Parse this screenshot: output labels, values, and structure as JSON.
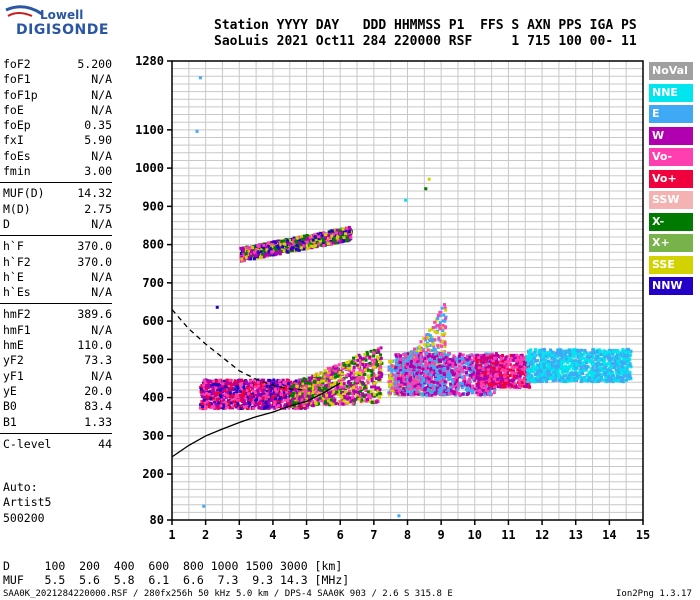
{
  "logo": {
    "line1": "Lowell",
    "line2": "DIGISONDE"
  },
  "header": {
    "line1": "Station YYYY DAY   DDD HHMMSS P1  FFS S AXN PPS IGA PS",
    "line2": "SaoLuis 2021 Oct11 284 220000 RSF     1 715 100 00- 11"
  },
  "params_groups": [
    [
      {
        "label": "foF2",
        "value": "5.200"
      },
      {
        "label": "foF1",
        "value": "N/A"
      },
      {
        "label": "foF1p",
        "value": "N/A"
      },
      {
        "label": "foE",
        "value": "N/A"
      },
      {
        "label": "foEp",
        "value": "0.35"
      },
      {
        "label": "fxI",
        "value": "5.90"
      },
      {
        "label": "foEs",
        "value": "N/A"
      },
      {
        "label": "fmin",
        "value": "3.00"
      }
    ],
    [
      {
        "label": "MUF(D)",
        "value": "14.32"
      },
      {
        "label": "M(D)",
        "value": "2.75"
      },
      {
        "label": "D",
        "value": "N/A"
      }
    ],
    [
      {
        "label": "h`F",
        "value": "370.0"
      },
      {
        "label": "h`F2",
        "value": "370.0"
      },
      {
        "label": "h`E",
        "value": "N/A"
      },
      {
        "label": "h`Es",
        "value": "N/A"
      }
    ],
    [
      {
        "label": "hmF2",
        "value": "389.6"
      },
      {
        "label": "hmF1",
        "value": "N/A"
      },
      {
        "label": "hmE",
        "value": "110.0"
      },
      {
        "label": "yF2",
        "value": "73.3"
      },
      {
        "label": "yF1",
        "value": "N/A"
      },
      {
        "label": "yE",
        "value": "20.0"
      },
      {
        "label": "B0",
        "value": "83.4"
      },
      {
        "label": "B1",
        "value": "1.33"
      }
    ],
    [
      {
        "label": "C-level",
        "value": "44"
      }
    ]
  ],
  "auto": {
    "line1": "Auto:",
    "line2": "Artist5",
    "line3": "500200"
  },
  "legend": [
    {
      "name": "NoVal",
      "color": "#a0a0a0"
    },
    {
      "name": "NNE",
      "color": "#00e5ee"
    },
    {
      "name": "E",
      "color": "#3fa9f5"
    },
    {
      "name": "W",
      "color": "#b000b0"
    },
    {
      "name": "Vo-",
      "color": "#ff3fb0"
    },
    {
      "name": "Vo+",
      "color": "#f0003c"
    },
    {
      "name": "SSW",
      "color": "#f4b2b2"
    },
    {
      "name": "X-",
      "color": "#007a00"
    },
    {
      "name": "X+",
      "color": "#78b24a"
    },
    {
      "name": "SSE",
      "color": "#d2d200"
    },
    {
      "name": "NNW",
      "color": "#2200c8"
    }
  ],
  "muf_table": {
    "line1": "D     100  200  400  600  800 1000 1500 3000 [km]",
    "line2": "MUF   5.5  5.6  5.8  6.1  6.6  7.3  9.3 14.3 [MHz]"
  },
  "footer": "SAA0K_2021284220000.RSF / 280fx256h 50 kHz 5.0 km / DPS-4 SAA0K 903 / 2.6 S 315.8 E",
  "version": "Ion2Png 1.3.17",
  "chart_data": {
    "type": "scatter",
    "xlabel": "",
    "ylabel": "",
    "xlim": [
      1,
      15
    ],
    "ylim": [
      80,
      1280
    ],
    "x_ticks": [
      1,
      2,
      3,
      4,
      5,
      6,
      7,
      8,
      9,
      10,
      11,
      12,
      13,
      14,
      15
    ],
    "y_ticks": [
      80,
      200,
      300,
      400,
      500,
      600,
      700,
      800,
      900,
      1000,
      1100,
      1280
    ],
    "grid": true,
    "legend_position": "right",
    "curves": [
      {
        "name": "",
        "style": "dashed",
        "x": [
          1.0,
          1.5,
          2.0,
          2.5,
          3.0,
          3.5,
          4.0,
          4.5,
          5.0
        ],
        "y": [
          630,
          580,
          540,
          505,
          470,
          448,
          432,
          422,
          420
        ]
      },
      {
        "name": "",
        "style": "solid",
        "x": [
          1.0,
          1.5,
          2.0,
          2.5,
          3.0,
          3.5,
          4.0,
          4.5,
          5.0,
          5.5,
          6.0
        ],
        "y": [
          245,
          275,
          300,
          318,
          335,
          350,
          362,
          378,
          390,
          412,
          438
        ]
      }
    ],
    "trace_regions": [
      {
        "x_range": [
          1.8,
          5.0
        ],
        "y_range": [
          375,
          450
        ],
        "colors": [
          "#2200c8",
          "#b000b0",
          "#ff3fb0",
          "#f0003c"
        ]
      },
      {
        "x_range": [
          4.5,
          7.2
        ],
        "y_range": [
          380,
          540
        ],
        "colors": [
          "#ff3fb0",
          "#b000b0",
          "#007a00",
          "#d2d200"
        ]
      },
      {
        "x_range": [
          7.4,
          9.1
        ],
        "y_range": [
          410,
          660
        ],
        "colors": [
          "#d2d200",
          "#ff3fb0",
          "#3fa9f5"
        ]
      },
      {
        "x_range": [
          7.6,
          10.6
        ],
        "y_range": [
          410,
          520
        ],
        "colors": [
          "#3fa9f5",
          "#ff3fb0",
          "#b000b0"
        ]
      },
      {
        "x_range": [
          10.0,
          11.6
        ],
        "y_range": [
          430,
          515
        ],
        "colors": [
          "#b000b0",
          "#f0003c",
          "#ff3fb0"
        ]
      },
      {
        "x_range": [
          11.5,
          14.6
        ],
        "y_range": [
          445,
          530
        ],
        "colors": [
          "#00e5ee",
          "#3fa9f5"
        ]
      },
      {
        "x_range": [
          3.0,
          6.3
        ],
        "y_range": [
          760,
          860
        ],
        "colors": [
          "#d2d200",
          "#007a00",
          "#b000b0",
          "#ff3fb0",
          "#2200c8"
        ]
      }
    ]
  }
}
